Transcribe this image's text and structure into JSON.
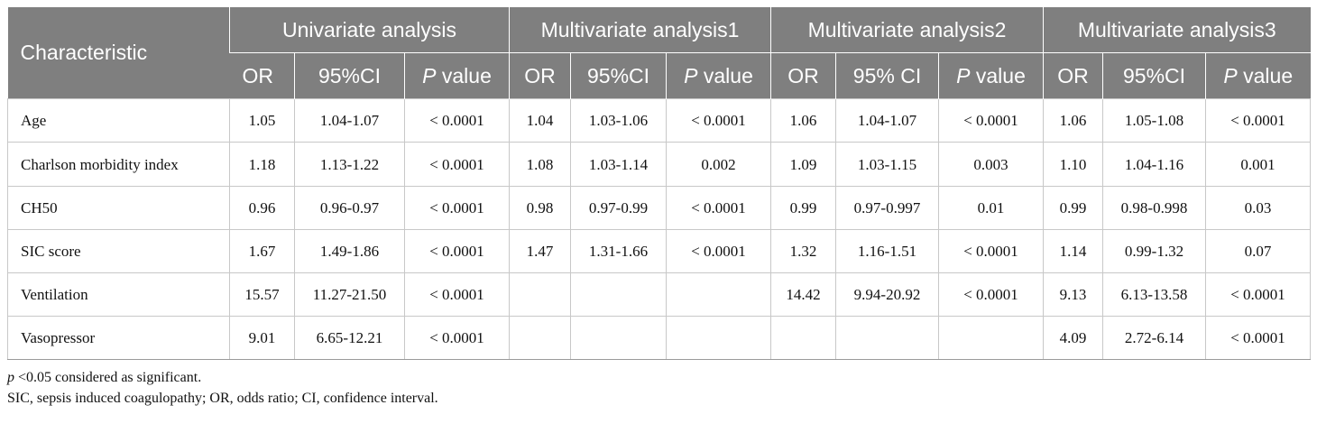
{
  "table": {
    "header": {
      "characteristic": "Characteristic",
      "groups": [
        "Univariate analysis",
        "Multivariate analysis1",
        "Multivariate analysis2",
        "Multivariate analysis3"
      ],
      "subcols": [
        {
          "or": "OR",
          "ci": "95%CI",
          "p_italic": "P",
          "p_rest": " value"
        },
        {
          "or": "OR",
          "ci": "95%CI",
          "p_italic": "P",
          "p_rest": " value"
        },
        {
          "or": "OR",
          "ci": "95% CI",
          "p_italic": "P",
          "p_rest": " value"
        },
        {
          "or": "OR",
          "ci": "95%CI",
          "p_italic": "P",
          "p_rest": " value"
        }
      ]
    },
    "rows": [
      {
        "label": "Age",
        "cells": [
          "1.05",
          "1.04-1.07",
          "< 0.0001",
          "1.04",
          "1.03-1.06",
          "< 0.0001",
          "1.06",
          "1.04-1.07",
          "< 0.0001",
          "1.06",
          "1.05-1.08",
          "< 0.0001"
        ]
      },
      {
        "label": "Charlson morbidity index",
        "cells": [
          "1.18",
          "1.13-1.22",
          "< 0.0001",
          "1.08",
          "1.03-1.14",
          "0.002",
          "1.09",
          "1.03-1.15",
          "0.003",
          "1.10",
          "1.04-1.16",
          "0.001"
        ]
      },
      {
        "label": "CH50",
        "cells": [
          "0.96",
          "0.96-0.97",
          "< 0.0001",
          "0.98",
          "0.97-0.99",
          "< 0.0001",
          "0.99",
          "0.97-0.997",
          "0.01",
          "0.99",
          "0.98-0.998",
          "0.03"
        ]
      },
      {
        "label": "SIC score",
        "cells": [
          "1.67",
          "1.49-1.86",
          "< 0.0001",
          "1.47",
          "1.31-1.66",
          "< 0.0001",
          "1.32",
          "1.16-1.51",
          "< 0.0001",
          "1.14",
          "0.99-1.32",
          "0.07"
        ]
      },
      {
        "label": "Ventilation",
        "cells": [
          "15.57",
          "11.27-21.50",
          "< 0.0001",
          "",
          "",
          "",
          "14.42",
          "9.94-20.92",
          "< 0.0001",
          "9.13",
          "6.13-13.58",
          "< 0.0001"
        ]
      },
      {
        "label": "Vasopressor",
        "cells": [
          "9.01",
          "6.65-12.21",
          "< 0.0001",
          "",
          "",
          "",
          "",
          "",
          "",
          "4.09",
          "2.72-6.14",
          "< 0.0001"
        ]
      }
    ]
  },
  "notes": {
    "line1_italic": "p",
    "line1_rest": " <0.05 considered as significant.",
    "line2": "SIC, sepsis induced coagulopathy; OR, odds ratio; CI, confidence interval."
  }
}
